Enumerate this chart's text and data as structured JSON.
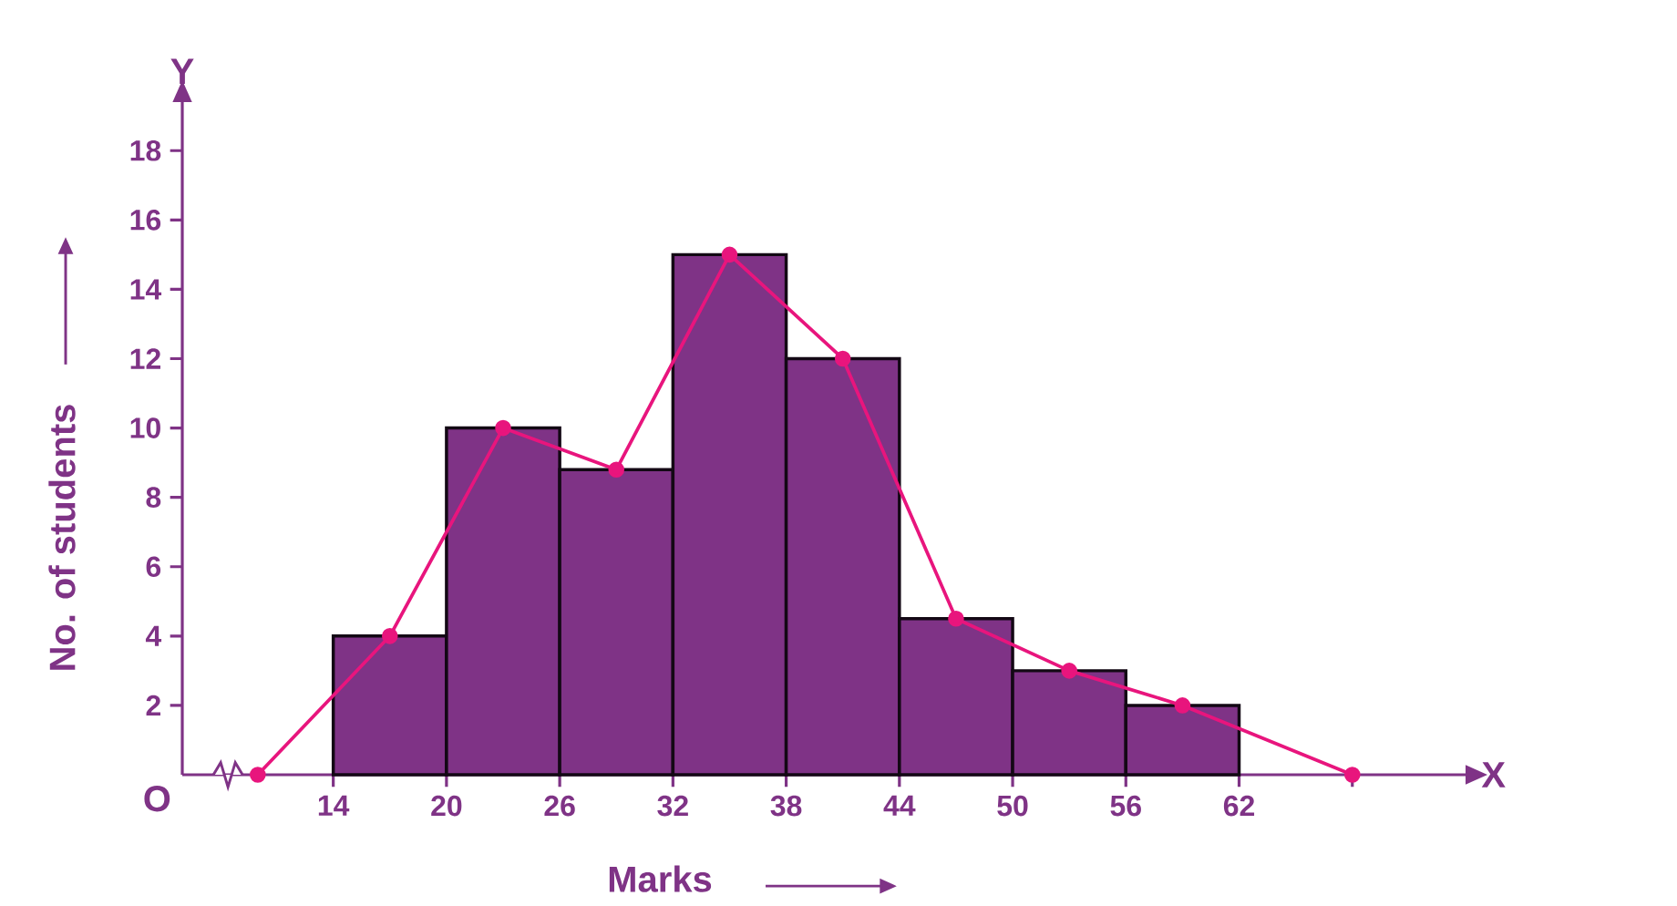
{
  "chart_data": {
    "type": "histogram",
    "xlabel": "Marks",
    "ylabel": "No. of students",
    "annotations": [
      "Y",
      "X",
      "O"
    ],
    "bins": [
      14,
      20,
      26,
      32,
      38,
      44,
      50,
      56,
      62
    ],
    "series": [
      {
        "color": "#7f3386",
        "values": [
          4,
          10,
          8.8,
          15,
          12,
          4.5,
          3,
          2
        ]
      },
      {
        "type": "line",
        "color": "#e8157d",
        "marker": "circle",
        "x": [
          10,
          17,
          23,
          29,
          35,
          41,
          47,
          53,
          59,
          68
        ],
        "values": [
          0,
          4,
          10,
          8.8,
          15,
          12,
          4.5,
          3,
          2,
          0
        ]
      }
    ],
    "xlim": [
      6,
      74
    ],
    "ylim": [
      0,
      19.4
    ],
    "xticks": [
      14,
      20,
      26,
      32,
      38,
      44,
      50,
      56,
      62,
      {
        "value": 68,
        "label": null
      }
    ],
    "yticks": [
      2,
      4,
      6,
      8,
      10,
      12,
      14,
      16,
      18
    ],
    "grid": false
  }
}
